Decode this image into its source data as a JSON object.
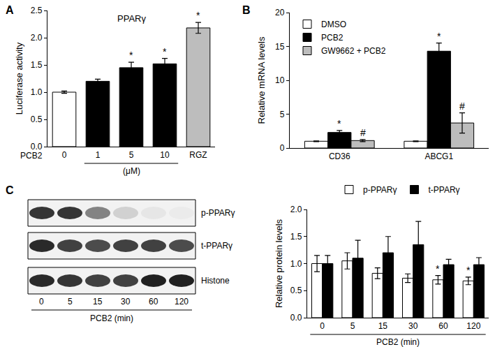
{
  "chart_data": [
    {
      "panel": "A",
      "type": "bar",
      "title": "PPARγ",
      "ylabel": "Luciferase activity",
      "row_label": "PCB2",
      "xlabel": "(μM)",
      "xlabel_categories": [
        "1",
        "5",
        "10"
      ],
      "categories": [
        "0",
        "1",
        "5",
        "10",
        "RGZ"
      ],
      "values": [
        1.0,
        1.2,
        1.45,
        1.52,
        2.18
      ],
      "errors": [
        0.02,
        0.04,
        0.1,
        0.1,
        0.1
      ],
      "colors": [
        "#ffffff",
        "#000000",
        "#000000",
        "#000000",
        "#bdbdbd"
      ],
      "marks": [
        null,
        null,
        "*",
        "*",
        "*"
      ],
      "ylim": [
        0,
        2.5
      ],
      "yticks": [
        {
          "value": 0,
          "label": "0.0"
        },
        0.5,
        {
          "value": 1,
          "label": "1.0"
        },
        1.5,
        {
          "value": 2,
          "label": "2.0"
        },
        2.5
      ],
      "grid": false
    },
    {
      "panel": "B",
      "type": "bar",
      "ylabel": "Relative mRNA levels",
      "categories": [
        "CD36",
        "ABCG1"
      ],
      "series": [
        {
          "name": "DMSO",
          "color": "#ffffff",
          "values": [
            1.0,
            1.0
          ],
          "errors": [
            0.05,
            0.05
          ],
          "marks": [
            null,
            null
          ]
        },
        {
          "name": "PCB2",
          "color": "#000000",
          "values": [
            2.3,
            14.3
          ],
          "errors": [
            0.3,
            1.2
          ],
          "marks": [
            "*",
            "*"
          ]
        },
        {
          "name": "GW9662 + PCB2",
          "color": "#bdbdbd",
          "values": [
            1.1,
            3.7
          ],
          "errors": [
            0.15,
            1.5
          ],
          "marks": [
            "#",
            "#"
          ]
        }
      ],
      "ylim": [
        0,
        20
      ],
      "yticks": [
        0,
        5,
        10,
        15,
        20
      ],
      "legend": "upper left",
      "grid": false
    },
    {
      "type": "bar",
      "ylabel": "Relative protein levels",
      "xlabel": "PCB2 (min)",
      "xlabel_categories": [
        "0",
        "5",
        "15",
        "30",
        "60",
        "120"
      ],
      "categories": [
        "0",
        "5",
        "15",
        "30",
        "60",
        "120"
      ],
      "series": [
        {
          "name": "p-PPARγ",
          "color": "#ffffff",
          "values": [
            1.0,
            1.05,
            0.82,
            0.73,
            0.7,
            0.68
          ],
          "errors": [
            0.15,
            0.15,
            0.1,
            0.08,
            0.08,
            0.07
          ],
          "marks": [
            null,
            null,
            null,
            null,
            "*",
            "*"
          ]
        },
        {
          "name": "t-PPARγ",
          "color": "#000000",
          "values": [
            1.0,
            1.1,
            1.2,
            1.35,
            0.98,
            0.98
          ],
          "errors": [
            0.15,
            0.33,
            0.3,
            0.43,
            0.1,
            0.13
          ],
          "marks": [
            null,
            null,
            null,
            null,
            null,
            null
          ]
        }
      ],
      "ylim": [
        0,
        2.0
      ],
      "yticks": [
        {
          "value": 0,
          "label": "0.0"
        },
        0.5,
        {
          "value": 1,
          "label": "1.0"
        },
        1.5,
        {
          "value": 2,
          "label": "2.0"
        }
      ],
      "legend": "top",
      "grid": false
    }
  ],
  "blot": {
    "panel": "C",
    "type": "blot",
    "xlabel": "PCB2 (min)",
    "lanes": [
      "0",
      "5",
      "15",
      "30",
      "60",
      "120"
    ],
    "rows": [
      {
        "label": "p-PPARγ",
        "intensity": [
          0.85,
          0.85,
          0.5,
          0.15,
          0.05,
          0.03
        ]
      },
      {
        "label": "t-PPARγ",
        "intensity": [
          0.9,
          0.8,
          0.75,
          0.8,
          0.8,
          0.75
        ]
      },
      {
        "label": "Histone",
        "intensity": [
          0.9,
          0.85,
          0.8,
          0.8,
          0.95,
          0.95
        ]
      }
    ]
  }
}
